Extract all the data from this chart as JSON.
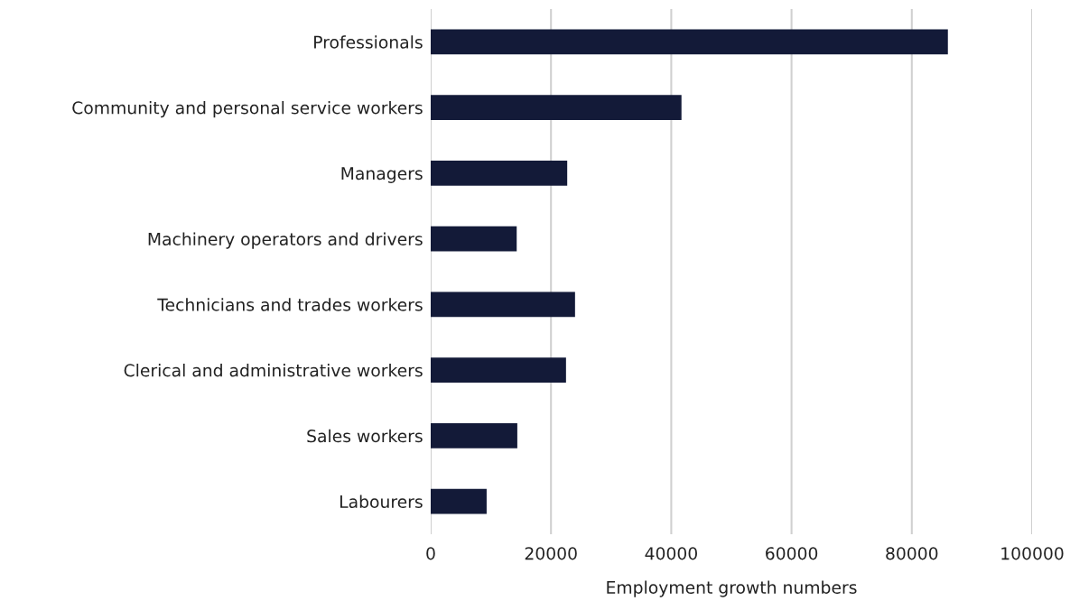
{
  "chart_data": {
    "type": "bar",
    "orientation": "horizontal",
    "categories": [
      "Professionals",
      "Community and personal service workers",
      "Managers",
      "Machinery operators and drivers",
      "Technicians and trades workers",
      "Clerical and administrative workers",
      "Sales workers",
      "Labourers"
    ],
    "values": [
      86000,
      41700,
      22700,
      14300,
      24000,
      22500,
      14400,
      9300
    ],
    "color": "#131a38",
    "xlim": [
      0,
      100000
    ],
    "xticks": [
      0,
      20000,
      40000,
      60000,
      80000,
      100000
    ],
    "xlabel": "Employment growth numbers",
    "grid": "x"
  }
}
